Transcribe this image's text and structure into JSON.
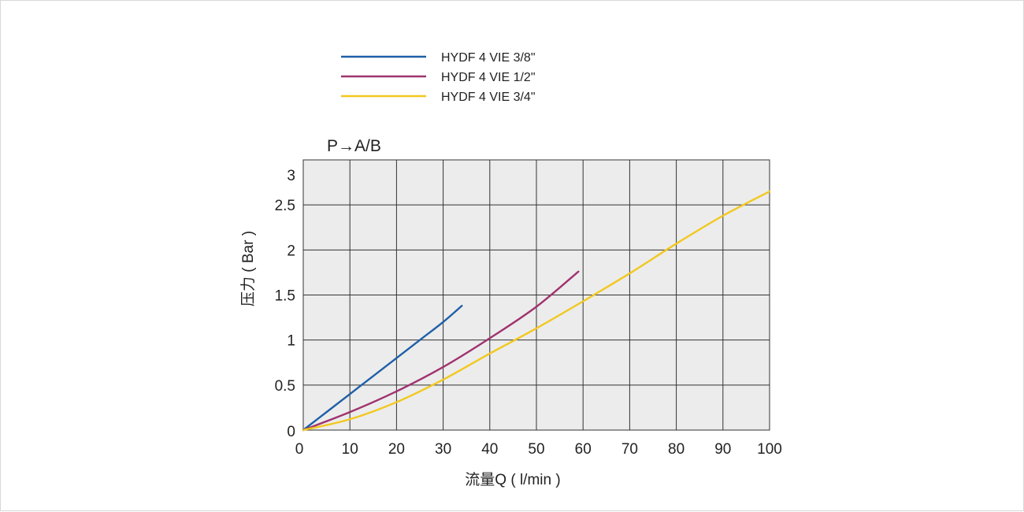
{
  "chart_data": {
    "type": "line",
    "title": "P→A/B",
    "xlabel": "流量Q ( l/min )",
    "ylabel": "压力 ( Bar )",
    "xlim": [
      0,
      100
    ],
    "ylim": [
      0,
      3
    ],
    "x_ticks": [
      "0",
      "10",
      "20",
      "30",
      "40",
      "50",
      "60",
      "70",
      "80",
      "90",
      "100"
    ],
    "y_ticks": [
      "0",
      "0.5",
      "1",
      "1.5",
      "2",
      "2.5",
      "3"
    ],
    "grid": true,
    "plot_background": "#ececec",
    "legend_position": "top",
    "series": [
      {
        "name": "HYDF 4 VIE 3/8\"",
        "color": "#1f5fa8",
        "x": [
          0,
          5,
          10,
          15,
          20,
          25,
          30,
          34
        ],
        "y": [
          0,
          0.2,
          0.4,
          0.6,
          0.8,
          1.0,
          1.2,
          1.38
        ]
      },
      {
        "name": "HYDF 4 VIE 1/2\"",
        "color": "#a0336e",
        "x": [
          0,
          10,
          20,
          30,
          40,
          50,
          59
        ],
        "y": [
          0,
          0.2,
          0.43,
          0.7,
          1.02,
          1.37,
          1.76
        ]
      },
      {
        "name": "HYDF 4 VIE 3/4\"",
        "color": "#f2c81e",
        "x": [
          0,
          10,
          20,
          30,
          40,
          50,
          60,
          70,
          80,
          90,
          100
        ],
        "y": [
          0,
          0.12,
          0.31,
          0.56,
          0.85,
          1.13,
          1.43,
          1.74,
          2.07,
          2.38,
          2.65
        ]
      }
    ]
  }
}
